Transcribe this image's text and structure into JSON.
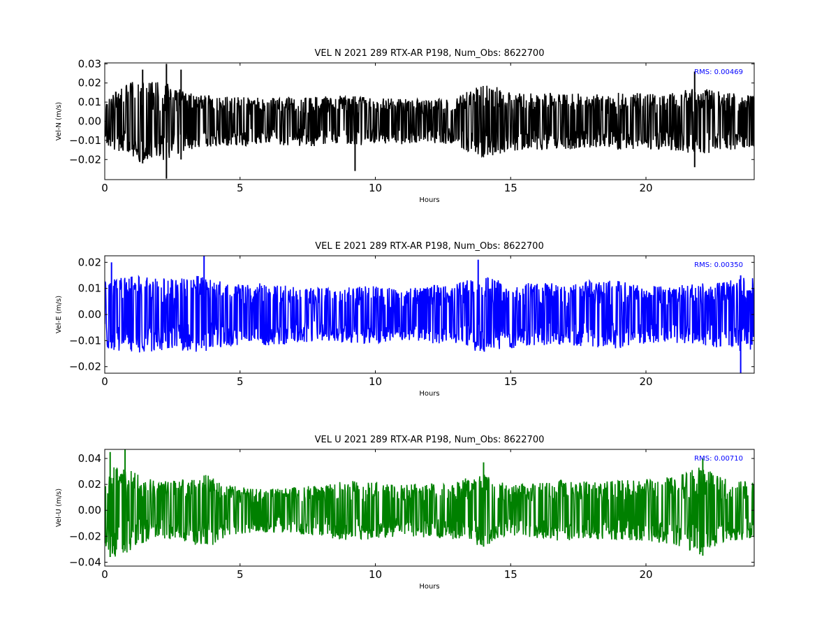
{
  "chart_data": [
    {
      "type": "line",
      "title": "VEL N 2021 289 RTX-AR  P198, Num_Obs: 8622700",
      "xlabel": "Hours",
      "ylabel": "Vel-N (m/s)",
      "xlim": [
        0,
        24
      ],
      "ylim": [
        -0.0305,
        0.0305
      ],
      "xticks": [
        0,
        5,
        10,
        15,
        20
      ],
      "xtick_labels": [
        "0",
        "5",
        "10",
        "15",
        "20"
      ],
      "yticks": [
        -0.02,
        -0.01,
        0.0,
        0.01,
        0.02,
        0.03
      ],
      "ytick_labels": [
        "−0.02",
        "−0.01",
        "0.00",
        "0.01",
        "0.02",
        "0.03"
      ],
      "grid": false,
      "rms_label": "RMS:  0.00469",
      "rms_color": "#0000ff",
      "series": [
        {
          "color": "#000000",
          "envelope_hours": [
            0,
            0.5,
            1,
            1.5,
            2,
            2.5,
            3,
            3.5,
            4,
            5,
            6,
            7,
            8,
            9,
            10,
            11,
            12,
            13,
            13.5,
            14,
            14.5,
            15,
            16,
            17,
            18,
            19,
            20,
            21,
            22,
            23,
            24
          ],
          "envelope_amplitude": [
            0.012,
            0.016,
            0.021,
            0.022,
            0.021,
            0.019,
            0.015,
            0.014,
            0.013,
            0.013,
            0.012,
            0.013,
            0.013,
            0.014,
            0.012,
            0.012,
            0.011,
            0.013,
            0.017,
            0.019,
            0.018,
            0.016,
            0.015,
            0.015,
            0.014,
            0.015,
            0.015,
            0.015,
            0.018,
            0.015,
            0.014
          ],
          "spikes": [
            {
              "x": 2.28,
              "min": -0.03,
              "max": 0.03
            },
            {
              "x": 1.4,
              "min": -0.022,
              "max": 0.027
            },
            {
              "x": 2.82,
              "min": -0.02,
              "max": 0.027
            },
            {
              "x": 9.25,
              "min": -0.026,
              "max": 0.013
            },
            {
              "x": 21.8,
              "min": -0.024,
              "max": 0.026
            }
          ]
        }
      ]
    },
    {
      "type": "line",
      "title": "VEL E 2021 289 RTX-AR  P198, Num_Obs: 8622700",
      "xlabel": "Hours",
      "ylabel": "Vel-E (m/s)",
      "xlim": [
        0,
        24
      ],
      "ylim": [
        -0.0225,
        0.0225
      ],
      "xticks": [
        0,
        5,
        10,
        15,
        20
      ],
      "xtick_labels": [
        "0",
        "5",
        "10",
        "15",
        "20"
      ],
      "yticks": [
        -0.02,
        -0.01,
        0.0,
        0.01,
        0.02
      ],
      "ytick_labels": [
        "−0.02",
        "−0.01",
        "0.00",
        "0.01",
        "0.02"
      ],
      "grid": false,
      "rms_label": "RMS:  0.00350",
      "rms_color": "#0000ff",
      "series": [
        {
          "color": "#0000ff",
          "envelope_hours": [
            0,
            0.5,
            1,
            2,
            3,
            3.5,
            4,
            5,
            6,
            7,
            8,
            9,
            10,
            11,
            12,
            13,
            14,
            15,
            16,
            17,
            18,
            19,
            20,
            21,
            22,
            23,
            24
          ],
          "envelope_amplitude": [
            0.013,
            0.014,
            0.015,
            0.014,
            0.014,
            0.015,
            0.013,
            0.012,
            0.012,
            0.011,
            0.01,
            0.011,
            0.011,
            0.01,
            0.011,
            0.012,
            0.015,
            0.013,
            0.012,
            0.012,
            0.013,
            0.013,
            0.011,
            0.011,
            0.012,
            0.013,
            0.015
          ],
          "spikes": [
            {
              "x": 3.67,
              "min": -0.012,
              "max": 0.0225
            },
            {
              "x": 13.8,
              "min": -0.012,
              "max": 0.021
            },
            {
              "x": 23.5,
              "min": -0.0225,
              "max": 0.015
            },
            {
              "x": 0.25,
              "min": -0.013,
              "max": 0.02
            }
          ]
        }
      ]
    },
    {
      "type": "line",
      "title": "VEL U 2021 289 RTX-AR  P198, Num_Obs: 8622700",
      "xlabel": "Hours",
      "ylabel": "Vel-U (m/s)",
      "xlim": [
        0,
        24
      ],
      "ylim": [
        -0.043,
        0.047
      ],
      "xticks": [
        0,
        5,
        10,
        15,
        20
      ],
      "xtick_labels": [
        "0",
        "5",
        "10",
        "15",
        "20"
      ],
      "yticks": [
        -0.04,
        -0.02,
        0.0,
        0.02,
        0.04
      ],
      "ytick_labels": [
        "−0.04",
        "−0.02",
        "0.00",
        "0.02",
        "0.04"
      ],
      "grid": false,
      "rms_label": "RMS:  0.00710",
      "rms_color": "#0000ff",
      "series": [
        {
          "color": "#008000",
          "envelope_hours": [
            0,
            0.5,
            1,
            1.5,
            2,
            3,
            3.5,
            4,
            4.5,
            5,
            6,
            7,
            8,
            9,
            10,
            11,
            12,
            13,
            14,
            14.5,
            15,
            16,
            17,
            18,
            19,
            20,
            21,
            22,
            23,
            24
          ],
          "envelope_amplitude": [
            0.028,
            0.038,
            0.03,
            0.026,
            0.022,
            0.024,
            0.028,
            0.027,
            0.02,
            0.018,
            0.017,
            0.018,
            0.02,
            0.024,
            0.022,
            0.02,
            0.021,
            0.023,
            0.028,
            0.024,
            0.019,
            0.022,
            0.024,
            0.022,
            0.023,
            0.024,
            0.026,
            0.034,
            0.024,
            0.022
          ],
          "spikes": [
            {
              "x": 0.75,
              "min": -0.03,
              "max": 0.047
            },
            {
              "x": 0.2,
              "min": -0.036,
              "max": 0.045
            },
            {
              "x": 22.1,
              "min": -0.035,
              "max": 0.04
            },
            {
              "x": 14.0,
              "min": -0.028,
              "max": 0.037
            }
          ]
        }
      ]
    }
  ]
}
